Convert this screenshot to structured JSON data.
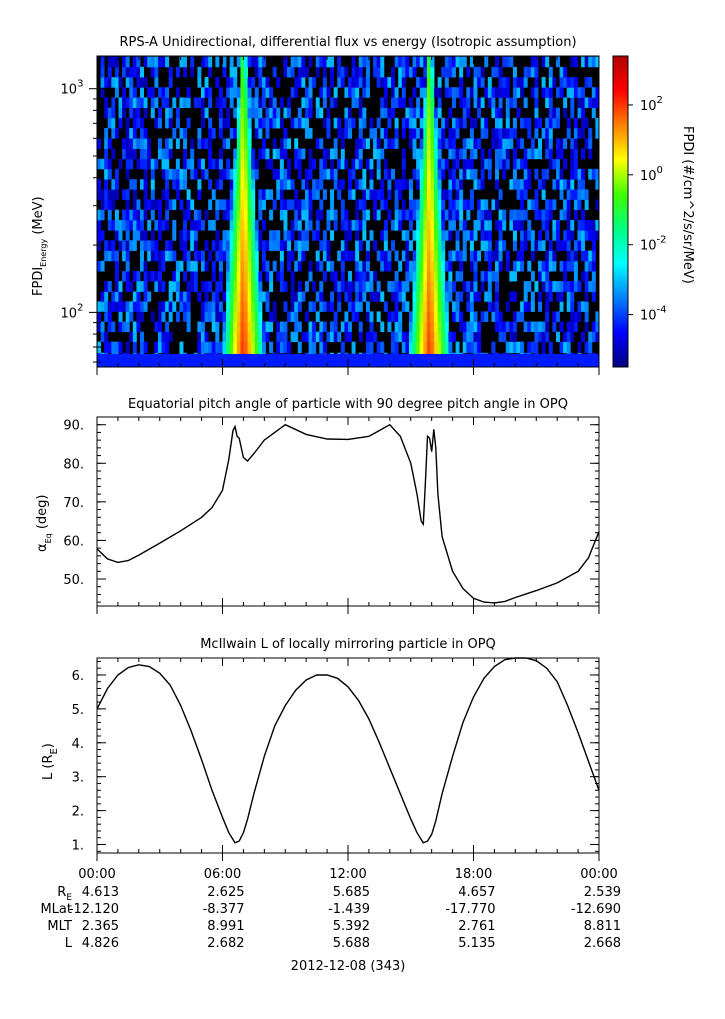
{
  "chart_data": [
    {
      "type": "heatmap",
      "title": "RPS-A Unidirectional, differential flux vs energy (Isotropic assumption)",
      "ylabel_main": "FPDI",
      "ylabel_sub": "Energy",
      "ylabel_unit": " (MeV)",
      "y_scale": "log",
      "ylim": [
        57,
        1400
      ],
      "y_ticks": [
        {
          "value": 100,
          "base": "10",
          "exp": "2"
        },
        {
          "value": 1000,
          "base": "10",
          "exp": "3"
        }
      ],
      "colorbar": {
        "label": "FPDI (#/cm^2/s/sr/MeV)",
        "scale": "log",
        "range_log10": [
          -5.5,
          3.4
        ],
        "ticks": [
          {
            "log10": 2,
            "base": "10",
            "exp": "2"
          },
          {
            "log10": 0,
            "base": "10",
            "exp": "0"
          },
          {
            "log10": -2,
            "base": "10",
            "exp": "-2"
          },
          {
            "log10": -4,
            "base": "10",
            "exp": "-4"
          }
        ],
        "colors": [
          "#00007f",
          "#0000ff",
          "#0080ff",
          "#00ffff",
          "#00ff80",
          "#40ff00",
          "#ffff00",
          "#ff8000",
          "#ff0000",
          "#b00000"
        ]
      },
      "energy_channels_mev": [
        60,
        66,
        74,
        82,
        91,
        101,
        112,
        124,
        138,
        153,
        170,
        189,
        210,
        233,
        259,
        288,
        320,
        355,
        394,
        438,
        486,
        540,
        600,
        667,
        741,
        823,
        914,
        1015,
        1127,
        1252,
        1390
      ],
      "features": [
        {
          "description": "radiation belt flux peak",
          "time_hours": [
            6.7,
            7.3
          ],
          "peak_log10": 2.2
        },
        {
          "description": "radiation belt flux peak",
          "time_hours": [
            15.6,
            16.2
          ],
          "peak_log10": 2.1
        }
      ],
      "background_log10": -4.5
    },
    {
      "type": "line",
      "title": "Equatorial pitch angle of particle with 90 degree pitch angle in OPQ",
      "ylabel": "α",
      "ylabel_sub": "Eq",
      "ylabel_unit": " (deg)",
      "ylim": [
        43,
        92
      ],
      "y_ticks": [
        "50.",
        "60.",
        "70.",
        "80.",
        "90."
      ],
      "x_hours": [
        0,
        0.5,
        1,
        1.5,
        2,
        3,
        4,
        5,
        5.5,
        6,
        6.3,
        6.5,
        6.6,
        6.7,
        6.8,
        7,
        7.2,
        7.5,
        8,
        9,
        10,
        11,
        12,
        13,
        14,
        14.5,
        15,
        15.3,
        15.5,
        15.6,
        15.7,
        15.8,
        15.9,
        16,
        16.1,
        16.2,
        16.3,
        16.5,
        17,
        17.5,
        18,
        18.5,
        19,
        19.5,
        20,
        21,
        22,
        23,
        23.5,
        24
      ],
      "values": [
        57.8,
        55.2,
        54.3,
        54.8,
        56.2,
        59.3,
        62.5,
        66.0,
        68.5,
        73.0,
        81.0,
        88.5,
        89.5,
        87.0,
        86.5,
        81.5,
        80.6,
        82.5,
        86.0,
        90.0,
        87.5,
        86.3,
        86.2,
        87.0,
        90.0,
        87.0,
        80.0,
        72.0,
        65.0,
        64.2,
        75.0,
        87.0,
        86.5,
        83.0,
        88.8,
        84.0,
        72.0,
        61.0,
        52.0,
        47.5,
        45.0,
        44.0,
        43.8,
        44.2,
        45.2,
        47.0,
        49.0,
        52.0,
        55.5,
        62.3
      ]
    },
    {
      "type": "line",
      "title": "McIlwain L of locally mirroring particle in OPQ",
      "ylabel": "L (R",
      "ylabel_sub": "E",
      "ylabel_unit": ")",
      "ylim": [
        0.75,
        6.5
      ],
      "y_ticks": [
        "1.",
        "2.",
        "3.",
        "4.",
        "5.",
        "6."
      ],
      "x_hours": [
        0,
        0.5,
        1,
        1.5,
        2,
        2.5,
        3,
        3.5,
        4,
        4.5,
        5,
        5.5,
        6,
        6.3,
        6.6,
        6.8,
        7,
        7.2,
        7.5,
        8,
        8.5,
        9,
        9.5,
        10,
        10.5,
        11,
        11.5,
        12,
        12.5,
        13,
        13.5,
        14,
        14.5,
        15,
        15.3,
        15.6,
        15.8,
        16,
        16.2,
        16.5,
        17,
        17.5,
        18,
        18.5,
        19,
        19.5,
        20,
        20.5,
        21,
        21.5,
        22,
        22.5,
        23,
        23.5,
        24
      ],
      "values": [
        5.0,
        5.6,
        6.0,
        6.22,
        6.3,
        6.25,
        6.05,
        5.7,
        5.1,
        4.35,
        3.5,
        2.6,
        1.8,
        1.35,
        1.05,
        1.1,
        1.35,
        1.75,
        2.5,
        3.6,
        4.5,
        5.1,
        5.55,
        5.85,
        6.0,
        6.0,
        5.9,
        5.65,
        5.25,
        4.7,
        4.0,
        3.25,
        2.5,
        1.75,
        1.35,
        1.05,
        1.1,
        1.3,
        1.7,
        2.5,
        3.6,
        4.6,
        5.35,
        5.9,
        6.25,
        6.45,
        6.5,
        6.5,
        6.42,
        6.2,
        5.8,
        5.1,
        4.3,
        3.45,
        2.6
      ]
    }
  ],
  "x_axis": {
    "ticks": [
      "00:00",
      "06:00",
      "12:00",
      "18:00",
      "00:00"
    ],
    "date_label": "2012-12-08 (343)"
  },
  "ephemeris": {
    "rows": [
      {
        "label": "R",
        "label_sub": "E",
        "values": [
          "4.613",
          "2.625",
          "5.685",
          "4.657",
          "2.539"
        ]
      },
      {
        "label": "MLat",
        "label_sub": "",
        "values": [
          "-12.120",
          "-8.377",
          "-1.439",
          "-17.770",
          "-12.690"
        ]
      },
      {
        "label": "MLT",
        "label_sub": "",
        "values": [
          "2.365",
          "8.991",
          "5.392",
          "2.761",
          "8.811"
        ]
      },
      {
        "label": "L",
        "label_sub": "",
        "values": [
          "4.826",
          "2.682",
          "5.688",
          "5.135",
          "2.668"
        ]
      }
    ]
  }
}
